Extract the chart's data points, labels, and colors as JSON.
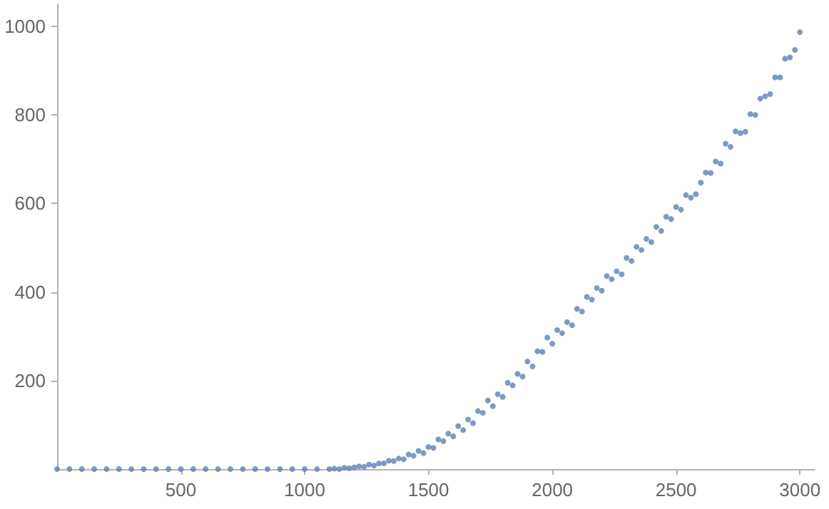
{
  "chart_data": {
    "type": "scatter",
    "xlim": [
      0,
      3060
    ],
    "ylim": [
      0,
      1050
    ],
    "xticks": [
      500,
      1000,
      1500,
      2000,
      2500,
      3000
    ],
    "yticks": [
      200,
      400,
      600,
      800,
      1000
    ],
    "grid": false,
    "marker": "circle",
    "series": [
      {
        "color": "#5e81b5",
        "x": [
          0,
          50,
          100,
          150,
          200,
          250,
          300,
          350,
          400,
          450,
          500,
          550,
          600,
          650,
          700,
          750,
          800,
          850,
          900,
          950,
          1000,
          1050,
          1100,
          1120,
          1140,
          1160,
          1180,
          1200,
          1220,
          1240,
          1260,
          1280,
          1300,
          1320,
          1340,
          1360,
          1380,
          1400,
          1420,
          1440,
          1460,
          1480,
          1500,
          1520,
          1540,
          1560,
          1580,
          1600,
          1620,
          1640,
          1660,
          1680,
          1700,
          1720,
          1740,
          1760,
          1780,
          1800,
          1820,
          1840,
          1860,
          1880,
          1900,
          1920,
          1940,
          1960,
          1980,
          2000,
          2020,
          2040,
          2060,
          2080,
          2100,
          2120,
          2140,
          2160,
          2180,
          2200,
          2220,
          2240,
          2260,
          2280,
          2300,
          2320,
          2340,
          2360,
          2380,
          2400,
          2420,
          2440,
          2460,
          2480,
          2500,
          2520,
          2540,
          2560,
          2580,
          2600,
          2620,
          2640,
          2660,
          2680,
          2700,
          2720,
          2740,
          2760,
          2780,
          2800,
          2820,
          2840,
          2860,
          2880,
          2900,
          2920,
          2940,
          2960,
          2980,
          3000
        ],
        "values": [
          0,
          0,
          0,
          0,
          0,
          0,
          0,
          0,
          0,
          0,
          0,
          0,
          0,
          0,
          0,
          0,
          0,
          0,
          0,
          0,
          0,
          0,
          0,
          1,
          0,
          3,
          2,
          4,
          6,
          5,
          10,
          8,
          13,
          13,
          19,
          18,
          24,
          22,
          33,
          30,
          41,
          36,
          50,
          48,
          67,
          63,
          80,
          74,
          97,
          88,
          112,
          104,
          131,
          127,
          155,
          142,
          169,
          163,
          195,
          189,
          215,
          209,
          243,
          232,
          266,
          265,
          297,
          283,
          314,
          307,
          332,
          325,
          362,
          356,
          389,
          383,
          409,
          403,
          436,
          429,
          447,
          440,
          477,
          470,
          502,
          495,
          520,
          513,
          547,
          538,
          570,
          565,
          592,
          586,
          619,
          613,
          621,
          647,
          670,
          669,
          695,
          690,
          735,
          728,
          763,
          759,
          762,
          802,
          800,
          837,
          842,
          847,
          885,
          885,
          927,
          930,
          947,
          987
        ]
      }
    ]
  }
}
